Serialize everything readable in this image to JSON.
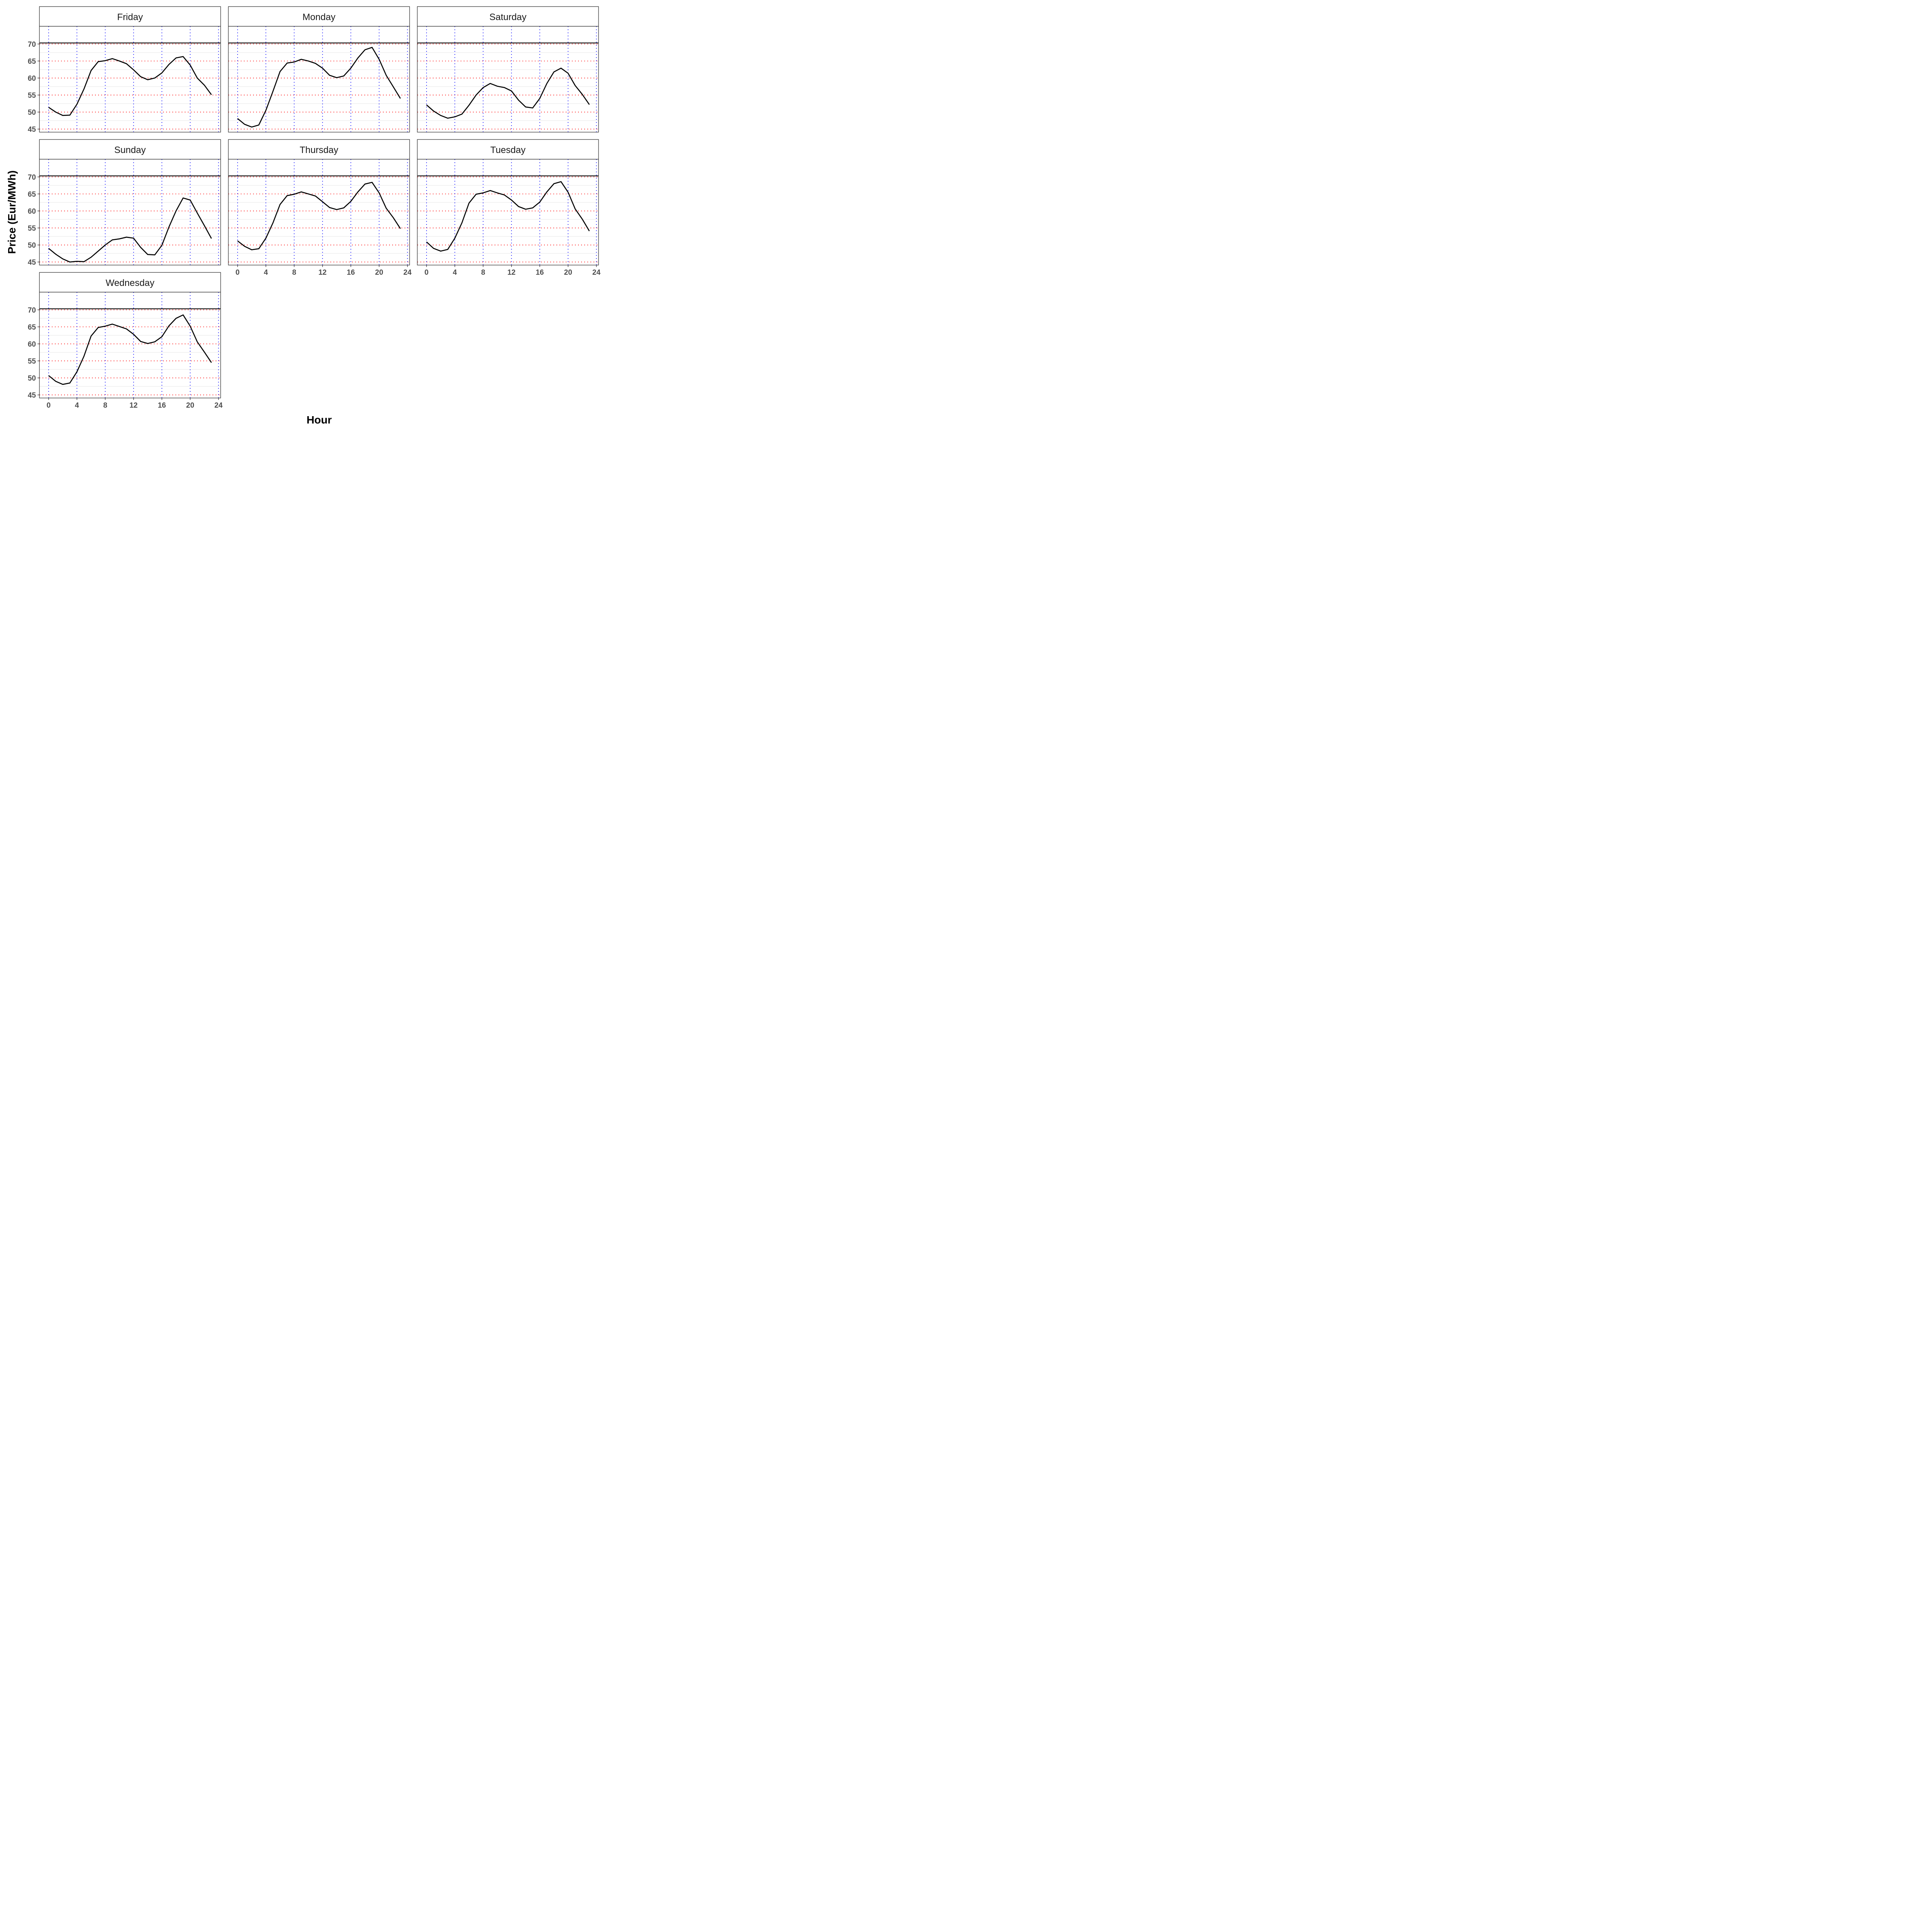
{
  "chart_data": {
    "type": "line",
    "layout": "facet-wrap",
    "xlabel": "Hour",
    "ylabel": "Price (Eur/MWh)",
    "xlim": [
      -1.3,
      24.3
    ],
    "ylim": [
      44.1,
      75.2
    ],
    "x_ticks": [
      0,
      4,
      8,
      12,
      16,
      20,
      24
    ],
    "y_ticks": [
      45,
      50,
      55,
      60,
      65,
      70
    ],
    "x": [
      0,
      1,
      2,
      3,
      4,
      5,
      6,
      7,
      8,
      9,
      10,
      11,
      12,
      13,
      14,
      15,
      16,
      17,
      18,
      19,
      20,
      21,
      22,
      23
    ],
    "hline_solid": 70.3,
    "gridlines": {
      "vertical_dotted_at": [
        0,
        4,
        8,
        12,
        16,
        20,
        24
      ],
      "horizontal_dotted_at": [
        45,
        50,
        55,
        60,
        65,
        70
      ]
    },
    "colors": {
      "line": "#000000",
      "vertical_grid": "#0000ff",
      "horizontal_grid": "#ff0000",
      "minor_grid": "#e5e5e5",
      "strip_bg": "#ffffff"
    },
    "series": [
      {
        "name": "Friday",
        "values": [
          51.4,
          50.0,
          49.0,
          49.1,
          52.3,
          56.8,
          62.2,
          64.8,
          65.1,
          65.7,
          65.0,
          64.2,
          62.4,
          60.4,
          59.5,
          60.0,
          61.5,
          64.0,
          65.9,
          66.3,
          63.8,
          60.0,
          57.9,
          55.1
        ]
      },
      {
        "name": "Monday",
        "values": [
          48.1,
          46.4,
          45.6,
          46.2,
          50.5,
          56.1,
          61.9,
          64.4,
          64.7,
          65.5,
          65.0,
          64.3,
          62.9,
          60.8,
          60.1,
          60.6,
          62.9,
          65.9,
          68.3,
          69.0,
          65.5,
          60.8,
          57.4,
          54.0
        ]
      },
      {
        "name": "Saturday",
        "values": [
          52.1,
          50.3,
          49.0,
          48.2,
          48.6,
          49.4,
          52.0,
          55.0,
          57.2,
          58.4,
          57.6,
          57.2,
          56.2,
          53.5,
          51.5,
          51.2,
          54.0,
          58.4,
          61.8,
          62.9,
          61.4,
          57.8,
          55.2,
          52.2
        ]
      },
      {
        "name": "Sunday",
        "values": [
          49.0,
          47.3,
          45.9,
          45.0,
          45.2,
          45.1,
          46.4,
          48.2,
          50.0,
          51.5,
          51.8,
          52.3,
          52.0,
          49.3,
          47.2,
          47.1,
          49.9,
          55.3,
          60.0,
          63.8,
          63.2,
          59.4,
          55.7,
          51.9
        ]
      },
      {
        "name": "Thursday",
        "values": [
          51.2,
          49.6,
          48.6,
          48.9,
          52.0,
          56.5,
          61.9,
          64.5,
          64.9,
          65.6,
          65.0,
          64.4,
          62.7,
          61.0,
          60.4,
          60.9,
          62.8,
          65.6,
          67.9,
          68.4,
          65.3,
          60.8,
          58.0,
          54.8
        ]
      },
      {
        "name": "Tuesday",
        "values": [
          50.9,
          49.0,
          48.2,
          48.7,
          52.0,
          56.5,
          62.3,
          64.9,
          65.3,
          66.0,
          65.3,
          64.7,
          63.2,
          61.3,
          60.5,
          60.9,
          62.6,
          65.6,
          68.0,
          68.6,
          65.5,
          60.6,
          57.6,
          54.1
        ]
      },
      {
        "name": "Wednesday",
        "values": [
          50.7,
          49.0,
          48.1,
          48.5,
          51.8,
          56.4,
          62.3,
          64.8,
          65.2,
          65.8,
          65.1,
          64.4,
          62.8,
          60.7,
          60.1,
          60.6,
          62.1,
          65.3,
          67.5,
          68.5,
          65.2,
          60.6,
          57.6,
          54.5
        ]
      }
    ]
  }
}
